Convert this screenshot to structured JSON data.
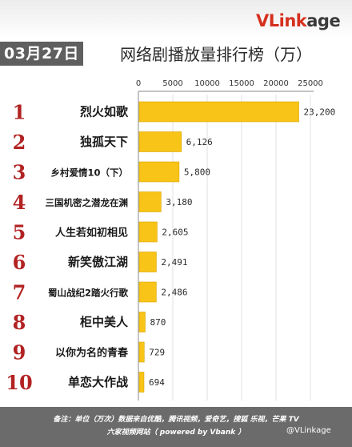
{
  "header": {
    "logo_part1": "VLink",
    "logo_part2": "age",
    "date": "03月27日",
    "title": "网络剧播放量排行榜（万）"
  },
  "footer": {
    "line1": "备注：单位（万次）数据来自优酷，腾讯视频，爱奇艺，搜狐  乐视，芒果 TV",
    "line2": "六家视频网站（ powered by Vbank ）",
    "watermark": "@VLinkage"
  },
  "colors": {
    "bar": "#f7c417",
    "bar_edge": "#d9a400",
    "rank": "#b22222",
    "footer_bg": "#6b6b6b"
  },
  "chart_data": {
    "type": "bar",
    "orientation": "horizontal",
    "title": "网络剧播放量排行榜（万）",
    "x_ticks": [
      0,
      5000,
      10000,
      15000,
      20000,
      25000
    ],
    "xlim": [
      0,
      25000
    ],
    "grid": true,
    "ranks": [
      "1",
      "2",
      "3",
      "4",
      "5",
      "6",
      "7",
      "8",
      "9",
      "10"
    ],
    "categories": [
      "烈火如歌",
      "独孤天下",
      "乡村爱情10（下）",
      "三国机密之潜龙在渊",
      "人生若如初相见",
      "新笑傲江湖",
      "蜀山战纪2踏火行歌",
      "柜中美人",
      "以你为名的青春",
      "单恋大作战"
    ],
    "values": [
      23200,
      6126,
      5800,
      3180,
      2605,
      2491,
      2486,
      870,
      729,
      694
    ],
    "value_labels": [
      "23,200",
      "6,126",
      "5,800",
      "3,180",
      "2,605",
      "2,491",
      "2,486",
      "870",
      "729",
      "694"
    ]
  }
}
